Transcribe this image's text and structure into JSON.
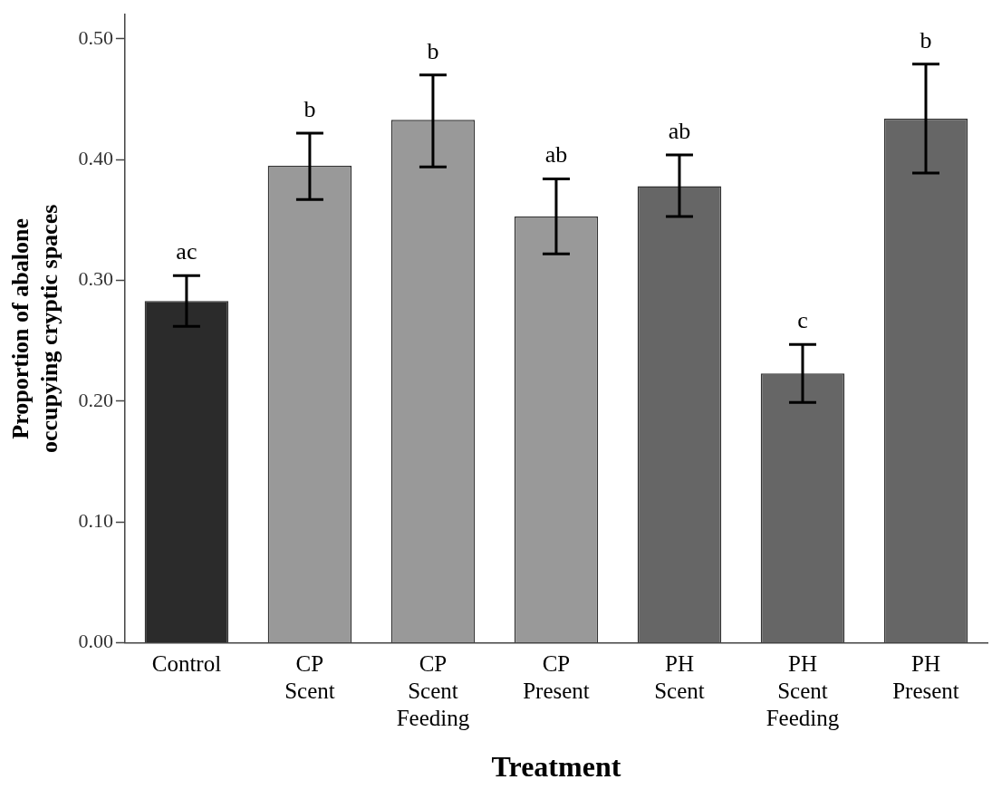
{
  "chart_data": {
    "type": "bar",
    "xlabel": "Treatment",
    "ylabel": "Proportion of abalone occupying cryptic spaces",
    "categories": [
      "Control",
      "CP Scent",
      "CP Scent Feeding",
      "CP Present",
      "PH Scent",
      "PH Scent Feeding",
      "PH Present"
    ],
    "values": [
      0.283,
      0.395,
      0.433,
      0.353,
      0.378,
      0.223,
      0.434
    ],
    "colors": [
      "#2b2b2b",
      "#999999",
      "#999999",
      "#999999",
      "#666666",
      "#666666",
      "#666666"
    ],
    "errors": [
      [
        0.262,
        0.304
      ],
      [
        0.367,
        0.422
      ],
      [
        0.394,
        0.47
      ],
      [
        0.322,
        0.384
      ],
      [
        0.353,
        0.404
      ],
      [
        0.199,
        0.247
      ],
      [
        0.389,
        0.479
      ]
    ],
    "ylim": [
      0,
      0.52
    ],
    "yticks": [
      {
        "value": 0,
        "label": "0.00"
      },
      {
        "value": 0.1,
        "label": "0.10"
      },
      {
        "value": 0.2,
        "label": "0.20"
      },
      {
        "value": 0.3,
        "label": "0.30"
      },
      {
        "value": 0.4,
        "label": "0.40"
      },
      {
        "value": 0.5,
        "label": "0.50"
      }
    ],
    "grid": false,
    "legend": false,
    "annotations": [
      {
        "text": "ac",
        "x": "Control",
        "y": 0.304
      },
      {
        "text": "b",
        "x": "CP Scent",
        "y": 0.422
      },
      {
        "text": "b",
        "x": "CP Scent Feeding",
        "y": 0.47
      },
      {
        "text": "ab",
        "x": "CP Present",
        "y": 0.384
      },
      {
        "text": "ab",
        "x": "PH Scent",
        "y": 0.404
      },
      {
        "text": "c",
        "x": "PH Scent Feeding",
        "y": 0.247
      },
      {
        "text": "b",
        "x": "PH Present",
        "y": 0.479
      }
    ]
  }
}
